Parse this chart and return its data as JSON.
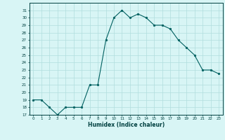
{
  "xlabel": "Humidex (Indice chaleur)",
  "ylabel": "",
  "x": [
    0,
    1,
    2,
    3,
    4,
    5,
    6,
    7,
    8,
    9,
    10,
    11,
    12,
    13,
    14,
    15,
    16,
    17,
    18,
    19,
    20,
    21,
    22,
    23
  ],
  "y": [
    19,
    19,
    18,
    17,
    18,
    18,
    18,
    21,
    21,
    27,
    30,
    31,
    30,
    30.5,
    30,
    29,
    29,
    28.5,
    27,
    26,
    25,
    23,
    23,
    22.5
  ],
  "line_color": "#006060",
  "marker_color": "#006060",
  "bg_color": "#d8f5f5",
  "grid_color": "#b0dede",
  "axis_label_color": "#004040",
  "tick_color": "#004040",
  "ylim": [
    17,
    32
  ],
  "xlim": [
    -0.5,
    23.5
  ],
  "yticks": [
    17,
    18,
    19,
    20,
    21,
    22,
    23,
    24,
    25,
    26,
    27,
    28,
    29,
    30,
    31
  ],
  "xticks": [
    0,
    1,
    2,
    3,
    4,
    5,
    6,
    7,
    8,
    9,
    10,
    11,
    12,
    13,
    14,
    15,
    16,
    17,
    18,
    19,
    20,
    21,
    22,
    23
  ]
}
